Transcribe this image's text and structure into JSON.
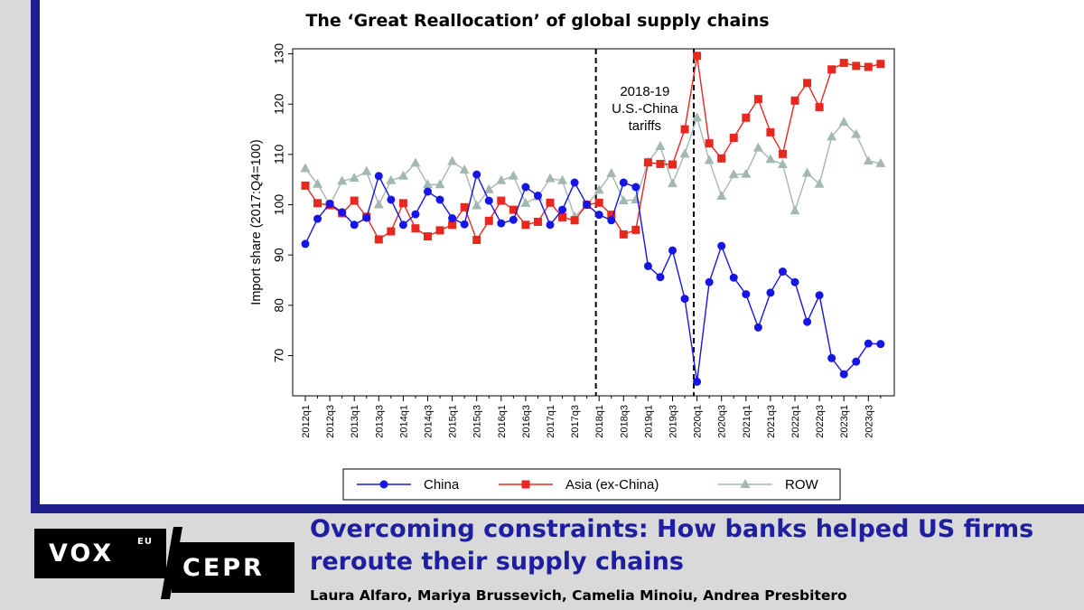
{
  "chart_data": {
    "type": "line",
    "title": "The ‘Great Reallocation’ of global supply chains",
    "ylabel": "Import share (2017:Q4=100)",
    "xlabel": "",
    "ylim": [
      62,
      131
    ],
    "yticks": [
      70,
      80,
      90,
      100,
      110,
      120,
      130
    ],
    "x": [
      "2012q1",
      "2012q2",
      "2012q3",
      "2012q4",
      "2013q1",
      "2013q2",
      "2013q3",
      "2013q4",
      "2014q1",
      "2014q2",
      "2014q3",
      "2014q4",
      "2015q1",
      "2015q2",
      "2015q3",
      "2015q4",
      "2016q1",
      "2016q2",
      "2016q3",
      "2016q4",
      "2017q1",
      "2017q2",
      "2017q3",
      "2017q4",
      "2018q1",
      "2018q2",
      "2018q3",
      "2018q4",
      "2019q1",
      "2019q2",
      "2019q3",
      "2019q4",
      "2020q1",
      "2020q2",
      "2020q3",
      "2020q4",
      "2021q1",
      "2021q2",
      "2021q3",
      "2021q4",
      "2022q1",
      "2022q2",
      "2022q3",
      "2022q4",
      "2023q1",
      "2023q2",
      "2023q3",
      "2023q4"
    ],
    "xtick_labels": [
      "2012q1",
      "2012q3",
      "2013q1",
      "2013q3",
      "2014q1",
      "2014q3",
      "2015q1",
      "2015q3",
      "2016q1",
      "2016q3",
      "2017q1",
      "2017q3",
      "2018q1",
      "2018q3",
      "2019q1",
      "2019q3",
      "2020q1",
      "2020q3",
      "2021q1",
      "2021q3",
      "2022q1",
      "2022q3",
      "2023q1",
      "2023q3"
    ],
    "series": [
      {
        "name": "China",
        "color": "#1515e6",
        "marker": "circle",
        "values": [
          92.2,
          97.2,
          100.2,
          98.5,
          96.0,
          97.4,
          105.7,
          101.0,
          96.0,
          98.1,
          102.6,
          101.0,
          97.3,
          96.1,
          106.0,
          100.8,
          96.3,
          97.0,
          103.5,
          101.8,
          96.0,
          99.0,
          104.4,
          100.0,
          98.0,
          96.9,
          104.4,
          103.5,
          87.8,
          85.6,
          90.9,
          81.3,
          64.8,
          84.6,
          91.8,
          85.5,
          82.2,
          75.6,
          82.5,
          86.7,
          84.6,
          76.7,
          82.0,
          69.5,
          66.3,
          68.8,
          72.4,
          72.3
        ]
      },
      {
        "name": "Asia (ex-China)",
        "color": "#e8281e",
        "marker": "square",
        "values": [
          103.8,
          100.3,
          99.9,
          98.3,
          100.8,
          97.6,
          93.1,
          94.7,
          100.3,
          95.3,
          93.7,
          94.9,
          96.0,
          99.5,
          93.0,
          96.8,
          100.8,
          99.0,
          96.0,
          96.6,
          100.4,
          97.5,
          96.9,
          100.0,
          100.4,
          98.0,
          94.1,
          95.0,
          108.4,
          108.1,
          108.0,
          115.0,
          129.6,
          112.2,
          109.2,
          113.3,
          117.3,
          121.0,
          114.4,
          110.1,
          120.7,
          124.2,
          119.4,
          126.9,
          128.2,
          127.6,
          127.4,
          128.0
        ]
      },
      {
        "name": "ROW",
        "color": "#a3b8b1",
        "marker": "triangle",
        "values": [
          107.2,
          104.1,
          100.0,
          104.7,
          105.3,
          106.6,
          100.0,
          104.8,
          105.7,
          108.3,
          104.0,
          104.0,
          108.6,
          106.9,
          99.8,
          103.0,
          104.8,
          105.7,
          100.3,
          101.6,
          105.2,
          104.8,
          97.6,
          100.0,
          102.9,
          106.2,
          100.8,
          101.0,
          108.5,
          111.6,
          104.2,
          110.1,
          117.3,
          108.8,
          101.7,
          106.0,
          106.1,
          111.3,
          109.0,
          108.0,
          98.8,
          106.3,
          104.1,
          113.5,
          116.4,
          114.0,
          108.7,
          108.2
        ]
      }
    ],
    "vlines": [
      "2017q4",
      "2019q4"
    ],
    "annotation": [
      "2018-19",
      "U.S.-China",
      "tariffs"
    ],
    "legend": {
      "position": "bottom",
      "entries": [
        "China",
        "Asia (ex-China)",
        "ROW"
      ]
    },
    "grid": false
  },
  "footer": {
    "logo_vox": "VOX",
    "logo_eu": "EU",
    "logo_cepr": "CEPR",
    "headline": "Overcoming constraints: How banks helped US firms reroute their supply chains",
    "authors": "Laura Alfaro, Mariya Brussevich, Camelia Minoiu, Andrea Presbitero"
  },
  "colors": {
    "frame": "#1e1e8c",
    "headline": "#1e1ea0",
    "background": "#d9d9d9"
  }
}
